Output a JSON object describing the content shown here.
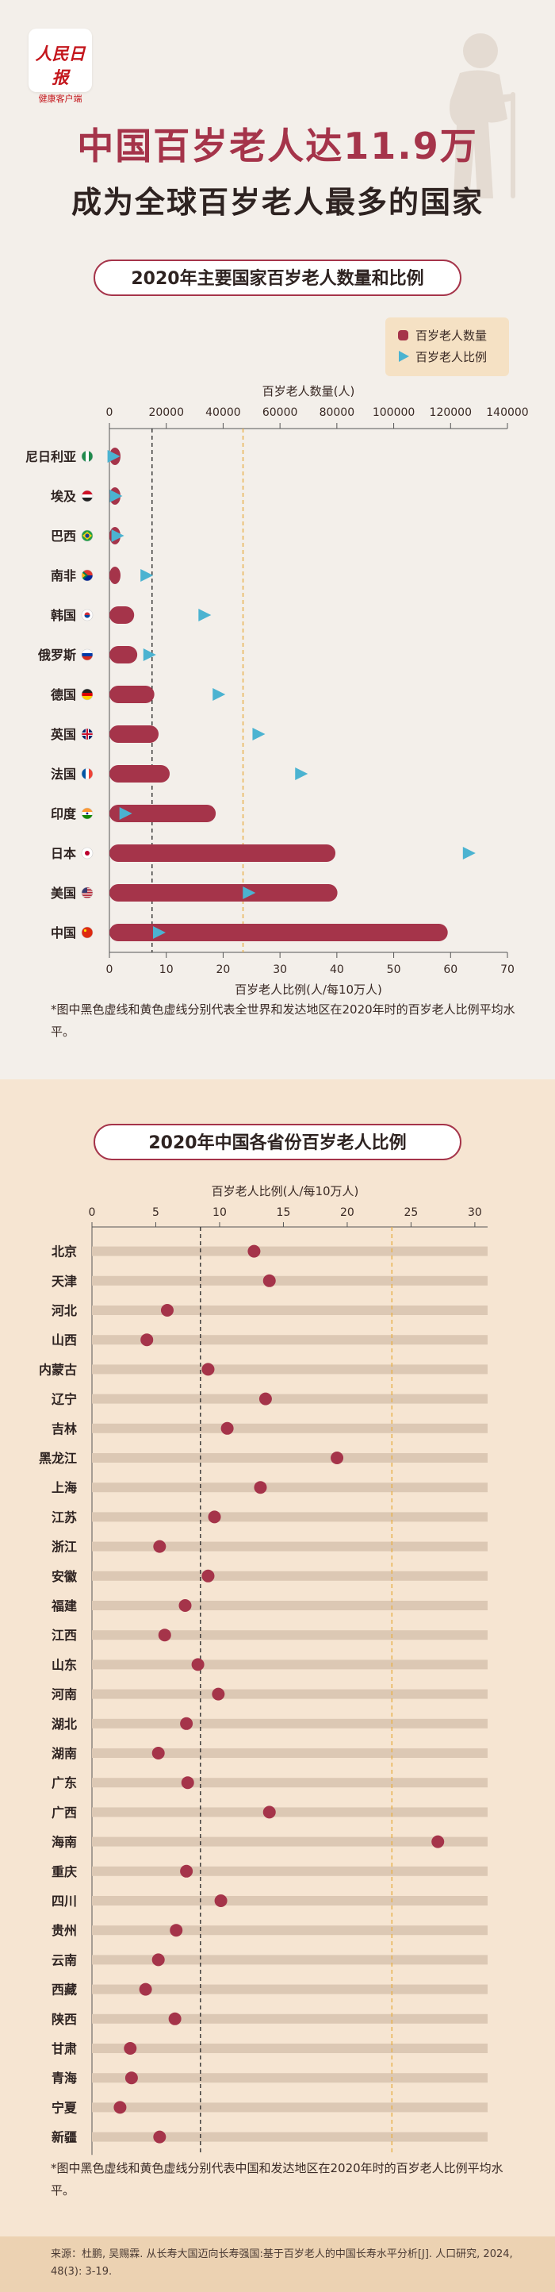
{
  "header": {
    "logo_text": "人民日报",
    "logo_sub": "健康客户端",
    "title_line1": "中国百岁老人达11.9万",
    "title_line2": "成为全球百岁老人最多的国家"
  },
  "section1": {
    "title": "2020年主要国家百岁老人数量和比例",
    "note": "*图中黑色虚线和黄色虚线分别代表全世界和发达地区在2020年时的百岁老人比例平均水平。"
  },
  "section2": {
    "title": "2020年中国各省份百岁老人比例",
    "note": "*图中黑色虚线和黄色虚线分别代表中国和发达地区在2020年时的百岁老人比例平均水平。"
  },
  "footer": {
    "source": "来源：杜鹏, 吴赐霖. 从长寿大国迈向长寿强国:基于百岁老人的中国长寿水平分析[J]. 人口研究, 2024, 48(3): 3-19."
  },
  "colors": {
    "bar": "#a5344a",
    "triangle": "#4bb3d1",
    "world_line": "#333333",
    "developed_line": "#e8b04a",
    "track": "#dcc8b4"
  },
  "chart_data": [
    {
      "type": "bar",
      "title": "2020年主要国家百岁老人数量和比例",
      "legend": {
        "placement": "top-right",
        "bar_label": "百岁老人数量",
        "ratio_label": "百岁老人比例"
      },
      "top_axis": {
        "label": "百岁老人数量(人)",
        "ticks": [
          "0",
          "20000",
          "40000",
          "60000",
          "80000",
          "100000",
          "120000",
          "140000"
        ],
        "range": [
          0,
          140000
        ]
      },
      "bottom_axis": {
        "label": "百岁老人比例(人/每10万人)",
        "ticks": [
          "0",
          "10",
          "20",
          "30",
          "40",
          "50",
          "60",
          "70"
        ],
        "range": [
          0,
          70
        ]
      },
      "categories": [
        "尼日利亚",
        "埃及",
        "巴西",
        "南非",
        "韩国",
        "俄罗斯",
        "德国",
        "英国",
        "法国",
        "印度",
        "日本",
        "美国",
        "中国"
      ],
      "flags": [
        "ng",
        "eg",
        "br",
        "za",
        "kr",
        "ru",
        "de",
        "gb",
        "fr",
        "in",
        "jp",
        "us",
        "cn"
      ],
      "series": [
        {
          "name": "百岁老人数量",
          "axis": "top",
          "values": [
            300,
            300,
            2500,
            3500,
            8700,
            9800,
            15800,
            17300,
            21200,
            37400,
            79500,
            80200,
            119000
          ]
        },
        {
          "name": "百岁老人比例",
          "axis": "bottom",
          "values": [
            0.5,
            0.9,
            1.2,
            6.3,
            16.5,
            6.8,
            19,
            26,
            33.5,
            2.6,
            63,
            24.3,
            8.5
          ]
        }
      ],
      "reference_lines": {
        "world": 7.5,
        "developed": 23.5
      }
    },
    {
      "type": "scatter",
      "title": "2020年中国各省份百岁老人比例",
      "axis": {
        "label": "百岁老人比例(人/每10万人)",
        "ticks": [
          "0",
          "5",
          "10",
          "15",
          "20",
          "25",
          "30"
        ],
        "range": [
          0,
          31
        ]
      },
      "categories": [
        "北京",
        "天津",
        "河北",
        "山西",
        "内蒙古",
        "辽宁",
        "吉林",
        "黑龙江",
        "上海",
        "江苏",
        "浙江",
        "安徽",
        "福建",
        "江西",
        "山东",
        "河南",
        "湖北",
        "湖南",
        "广东",
        "广西",
        "海南",
        "重庆",
        "四川",
        "贵州",
        "云南",
        "西藏",
        "陕西",
        "甘肃",
        "青海",
        "宁夏",
        "新疆"
      ],
      "values": [
        12.7,
        13.9,
        5.9,
        4.3,
        9.1,
        13.6,
        10.6,
        19.2,
        13.2,
        9.6,
        5.3,
        9.1,
        7.3,
        5.7,
        8.3,
        9.9,
        7.4,
        5.2,
        7.5,
        13.9,
        27.1,
        7.4,
        10.1,
        6.6,
        5.2,
        4.2,
        6.5,
        3.0,
        3.1,
        2.2,
        5.3
      ],
      "reference_lines": {
        "china": 8.5,
        "developed": 23.5
      }
    }
  ]
}
